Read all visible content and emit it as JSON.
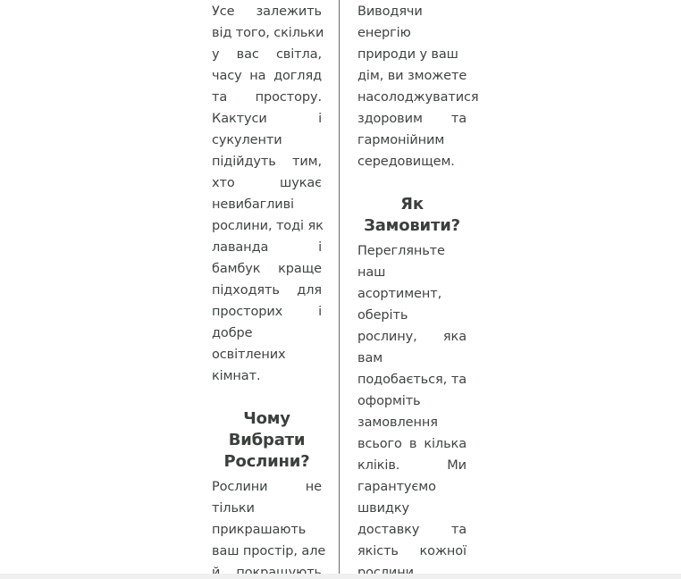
{
  "left_column": {
    "para1": [
      [
        "Усе",
        "залежить"
      ],
      [
        "від того, скільки"
      ],
      [
        "у",
        "вас",
        "світла,"
      ],
      [
        "часу",
        "на",
        "догляд"
      ],
      [
        "та",
        "простору."
      ],
      [
        "Кактуси",
        "і"
      ],
      [
        "сукуленти"
      ],
      [
        "підійдуть",
        "тим,"
      ],
      [
        "хто",
        "шукає"
      ],
      [
        "невибагливі"
      ],
      [
        "рослини, тоді як"
      ],
      [
        "лаванда",
        "і"
      ],
      [
        "бамбук",
        "краще"
      ],
      [
        "підходять",
        "для"
      ],
      [
        "просторих",
        "і"
      ],
      [
        "добре"
      ],
      [
        "освітлених"
      ],
      [
        "кімнат."
      ]
    ],
    "heading": [
      "Чому",
      "Вибрати",
      "Рослини?"
    ],
    "para2": [
      [
        "Рослини",
        "не"
      ],
      [
        "тільки"
      ],
      [
        "прикрашають"
      ],
      [
        "ваш простір, але"
      ],
      [
        "й",
        "покращують"
      ]
    ]
  },
  "right_column": {
    "para1": [
      [
        "Виводячи"
      ],
      [
        "енергію"
      ],
      [
        "природи у ваш"
      ],
      [
        "дім, ви зможете"
      ],
      [
        "насолоджуватися"
      ],
      [
        "здоровим",
        "та"
      ],
      [
        "гармонійним"
      ],
      [
        "середовищем."
      ]
    ],
    "heading": [
      "Як",
      "Замовити?"
    ],
    "para2": [
      [
        "Перегляньте"
      ],
      [
        "наш"
      ],
      [
        "асортимент,"
      ],
      [
        "оберіть"
      ],
      [
        "рослину,",
        "яка"
      ],
      [
        "вам"
      ],
      [
        "подобається,",
        "та"
      ],
      [
        "оформіть"
      ],
      [
        "замовлення"
      ],
      [
        "всього",
        "в",
        "кілька"
      ],
      [
        "кліків.",
        "Ми"
      ],
      [
        "гарантуємо"
      ],
      [
        "швидку"
      ],
      [
        "доставку",
        "та"
      ],
      [
        "якість",
        "кожної"
      ],
      [
        "рослини."
      ]
    ]
  },
  "colors": {
    "text": "#3f4541",
    "heading": "#3b403c",
    "divider": "#6b6b6b",
    "background": "#ffffff"
  }
}
